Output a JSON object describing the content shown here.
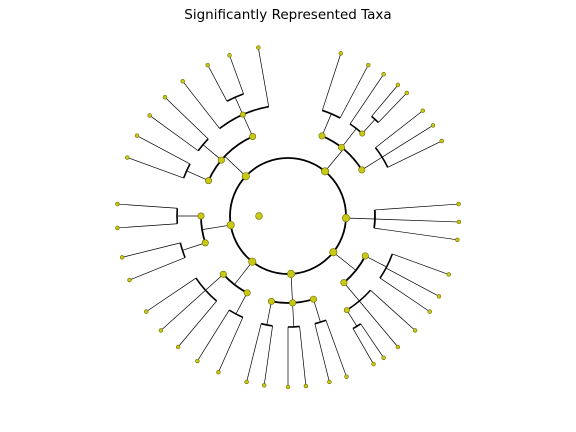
{
  "title": "Significantly Represented Taxa",
  "colors": {
    "node_fill": "#c8c816",
    "node_stroke": "#6b6b00",
    "branch": "#000000",
    "background": "#ffffff"
  },
  "tree": {
    "type": "circular-cladogram",
    "levels": 6,
    "root": {
      "label": ""
    }
  }
}
